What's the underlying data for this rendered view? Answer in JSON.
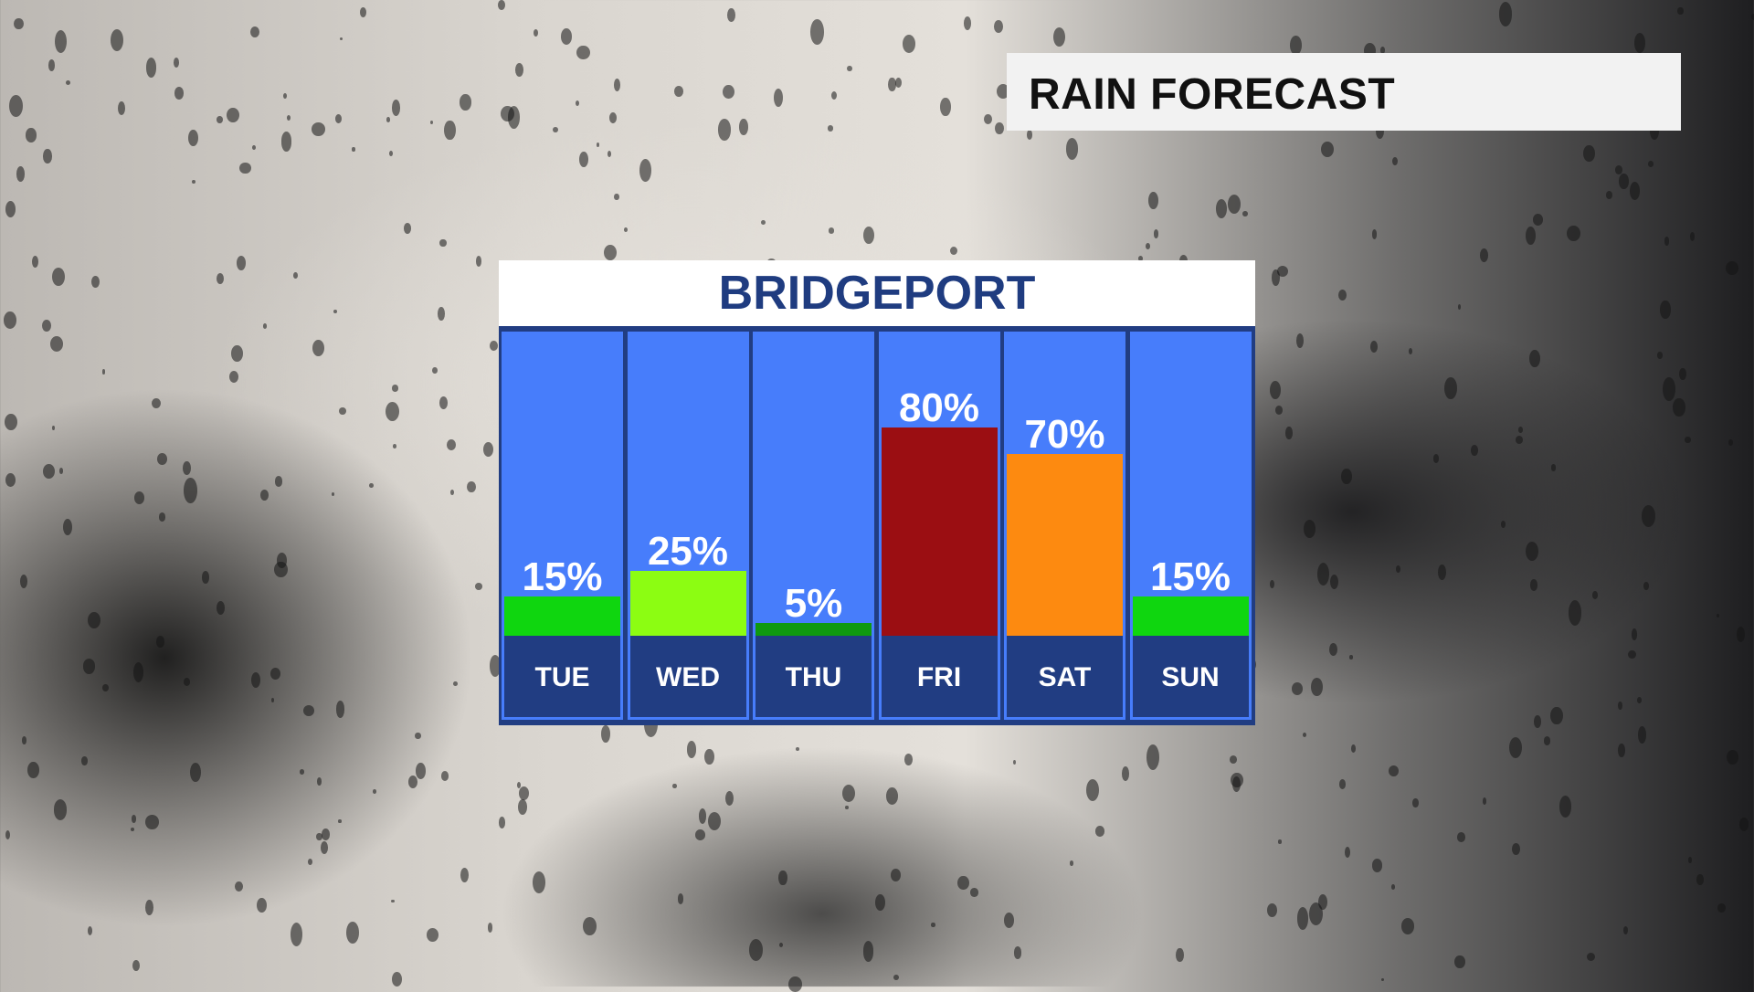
{
  "title": "RAIN FORECAST",
  "chart_data": {
    "type": "bar",
    "title": "BRIDGEPORT",
    "categories": [
      "TUE",
      "WED",
      "THU",
      "FRI",
      "SAT",
      "SUN"
    ],
    "values": [
      15,
      25,
      5,
      80,
      70,
      15
    ],
    "labels": [
      "15%",
      "25%",
      "5%",
      "80%",
      "70%",
      "15%"
    ],
    "colors": [
      "#0fd60f",
      "#8cfd12",
      "#0f990f",
      "#9b0e12",
      "#fd8a10",
      "#0fd60f"
    ],
    "ylim": [
      0,
      100
    ],
    "column_color": "#477dfb",
    "frame_color": "#213d82"
  }
}
